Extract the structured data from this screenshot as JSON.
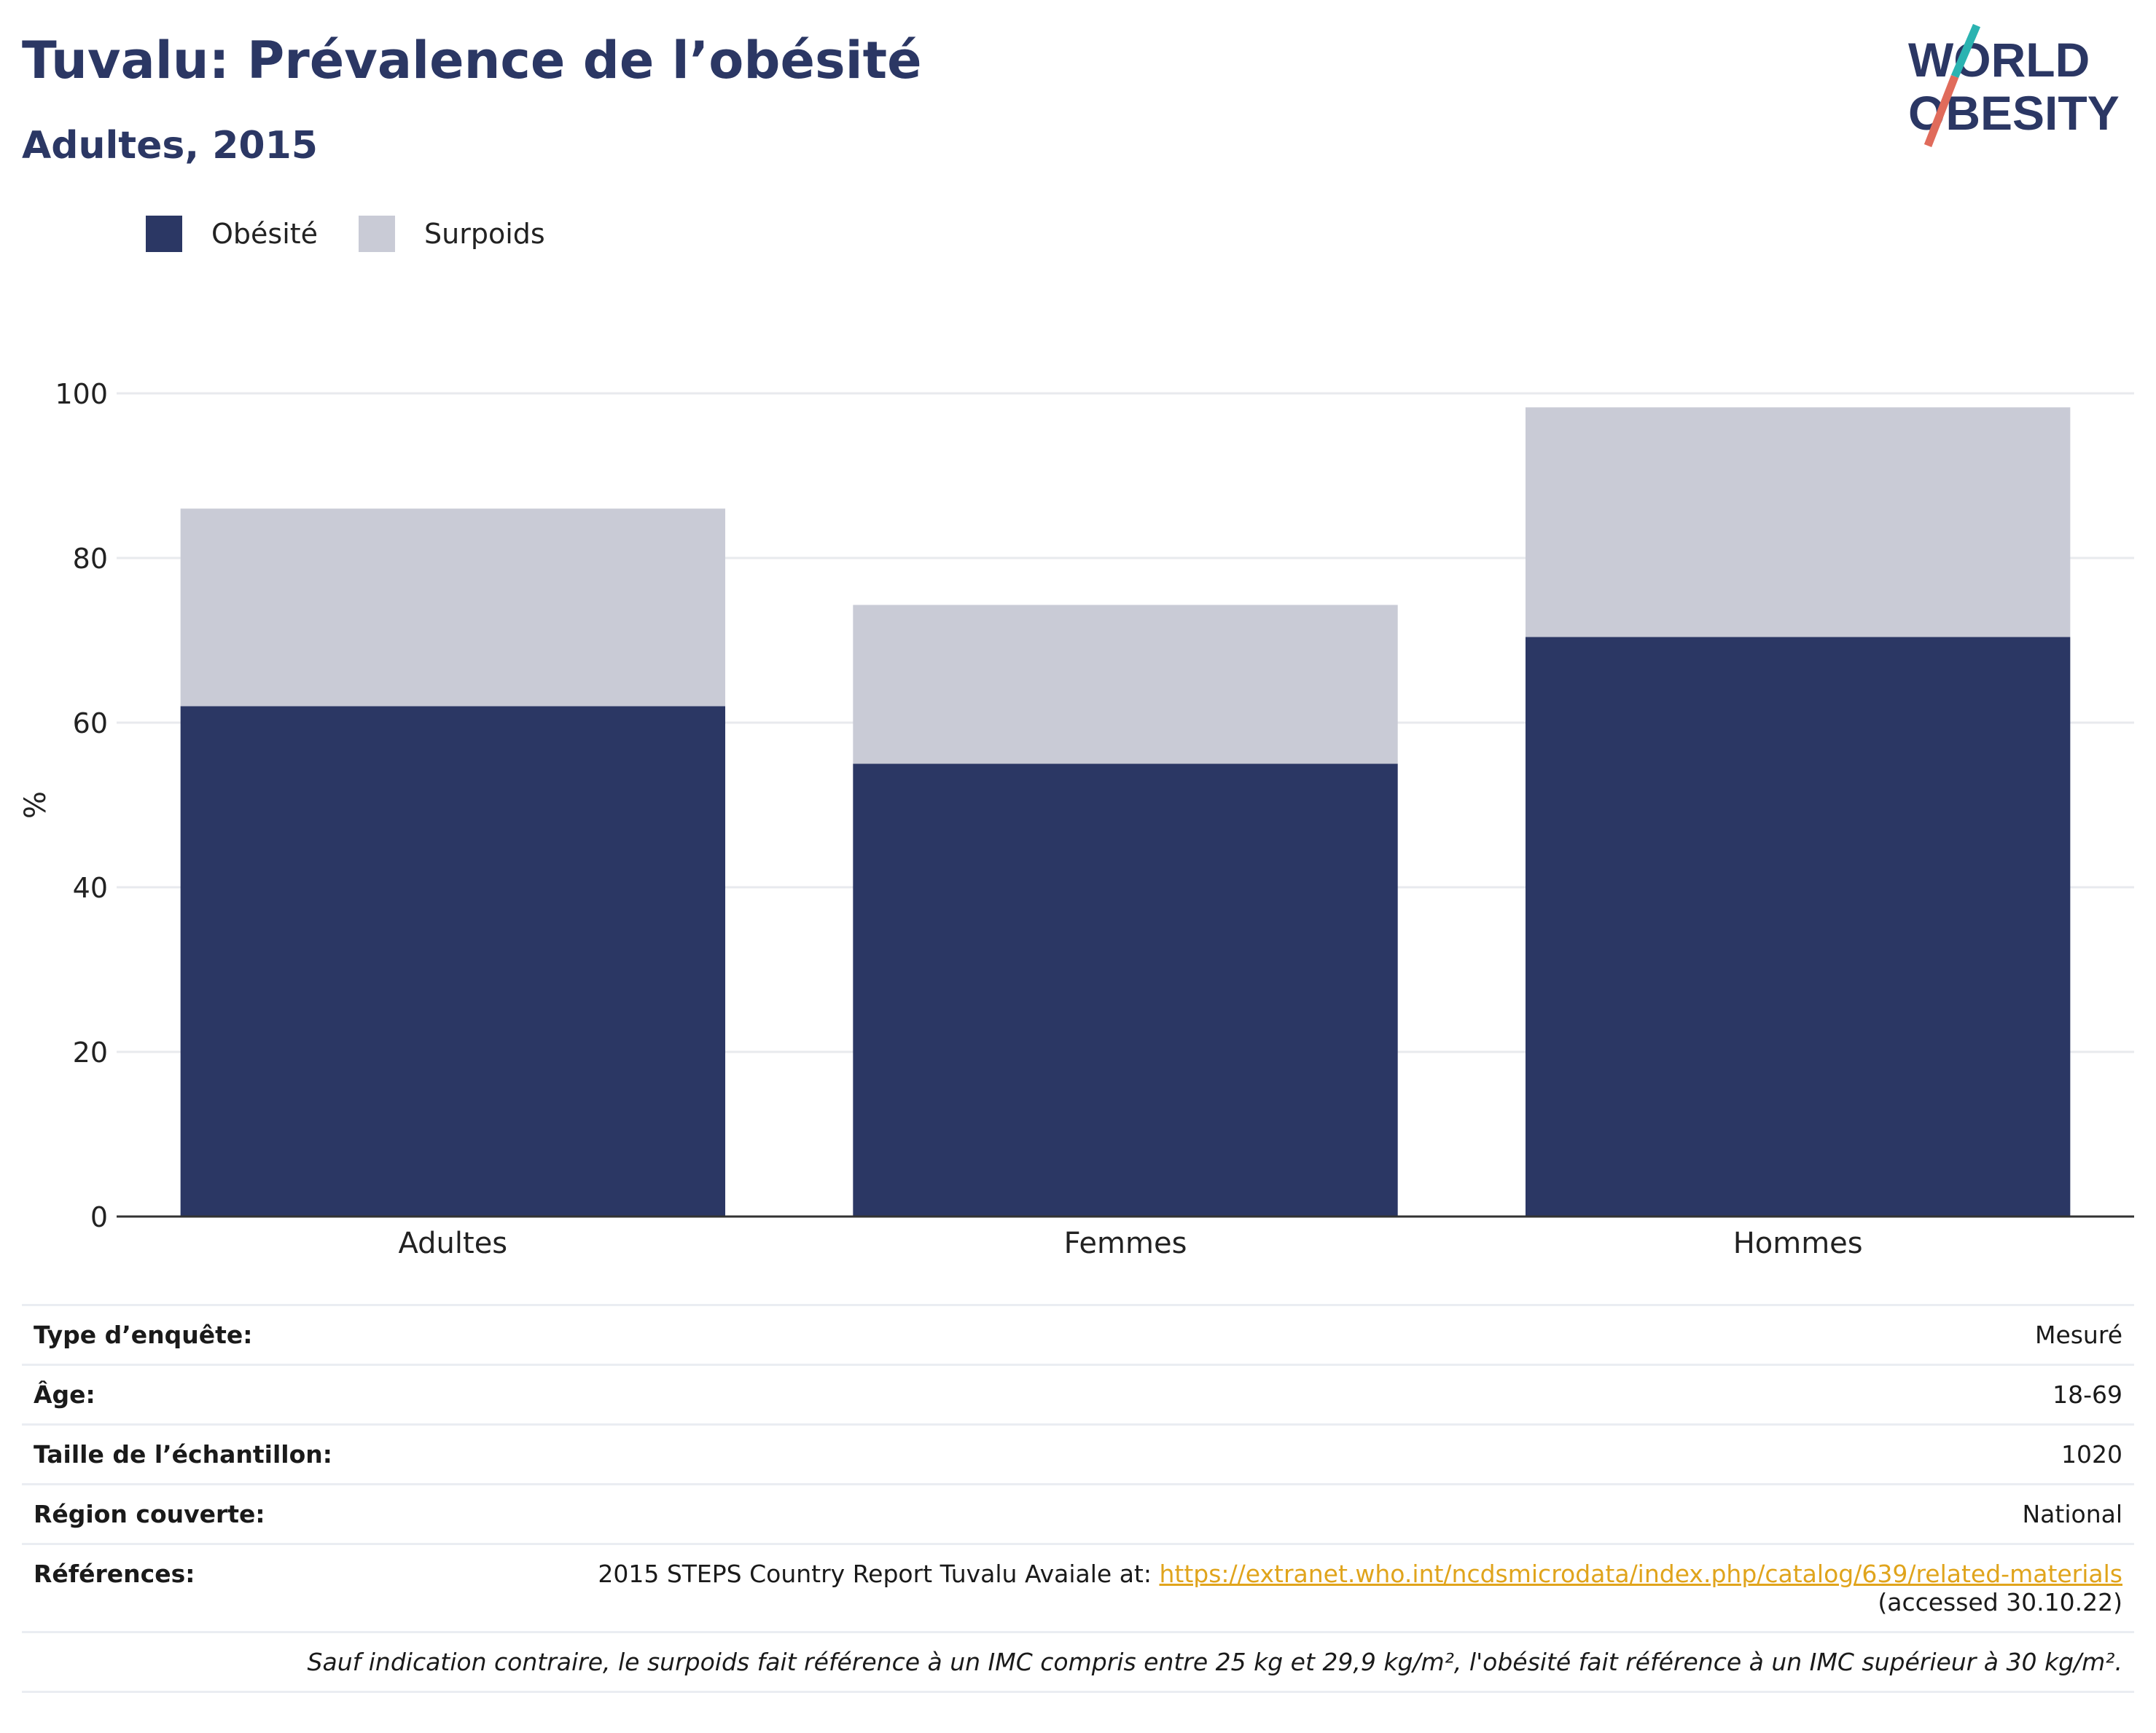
{
  "header": {
    "title": "Tuvalu: Prévalence de l’obésité",
    "subtitle": "Adultes, 2015"
  },
  "logo": {
    "line1": "WORLD",
    "line2": "OBESITY"
  },
  "legend": [
    {
      "label": "Obésité",
      "color": "#2b3764"
    },
    {
      "label": "Surpoids",
      "color": "#c9cbd6"
    }
  ],
  "chart_data": {
    "type": "bar",
    "stacked": true,
    "categories": [
      "Adultes",
      "Femmes",
      "Hommes"
    ],
    "series": [
      {
        "name": "Obésité",
        "color": "#2b3764",
        "values": [
          62.0,
          55.0,
          70.4
        ]
      },
      {
        "name": "Surpoids",
        "color": "#c9cbd6",
        "values": [
          24.0,
          19.3,
          27.9
        ]
      }
    ],
    "ylabel": "%",
    "ylim": [
      0,
      100
    ],
    "yticks": [
      0,
      20,
      40,
      60,
      80,
      100
    ],
    "grid": true
  },
  "info": {
    "survey_type_label": "Type d’enquête:",
    "survey_type_value": "Mesuré",
    "age_label": "Âge:",
    "age_value": "18-69",
    "sample_label": "Taille de l’échantillon:",
    "sample_value": "1020",
    "region_label": "Région couverte:",
    "region_value": "National",
    "references_label": "Références:",
    "references_text": "2015 STEPS Country Report Tuvalu Avaiale at: ",
    "references_link": "https://extranet.who.int/ncdsmicrodata/index.php/catalog/639/related-materials",
    "references_accessed": "(accessed 30.10.22)",
    "note": "Sauf indication contraire, le surpoids fait référence à un IMC compris entre 25 kg et 29,9 kg/m², l'obésité fait référence à un IMC supérieur à 30 kg/m²."
  }
}
